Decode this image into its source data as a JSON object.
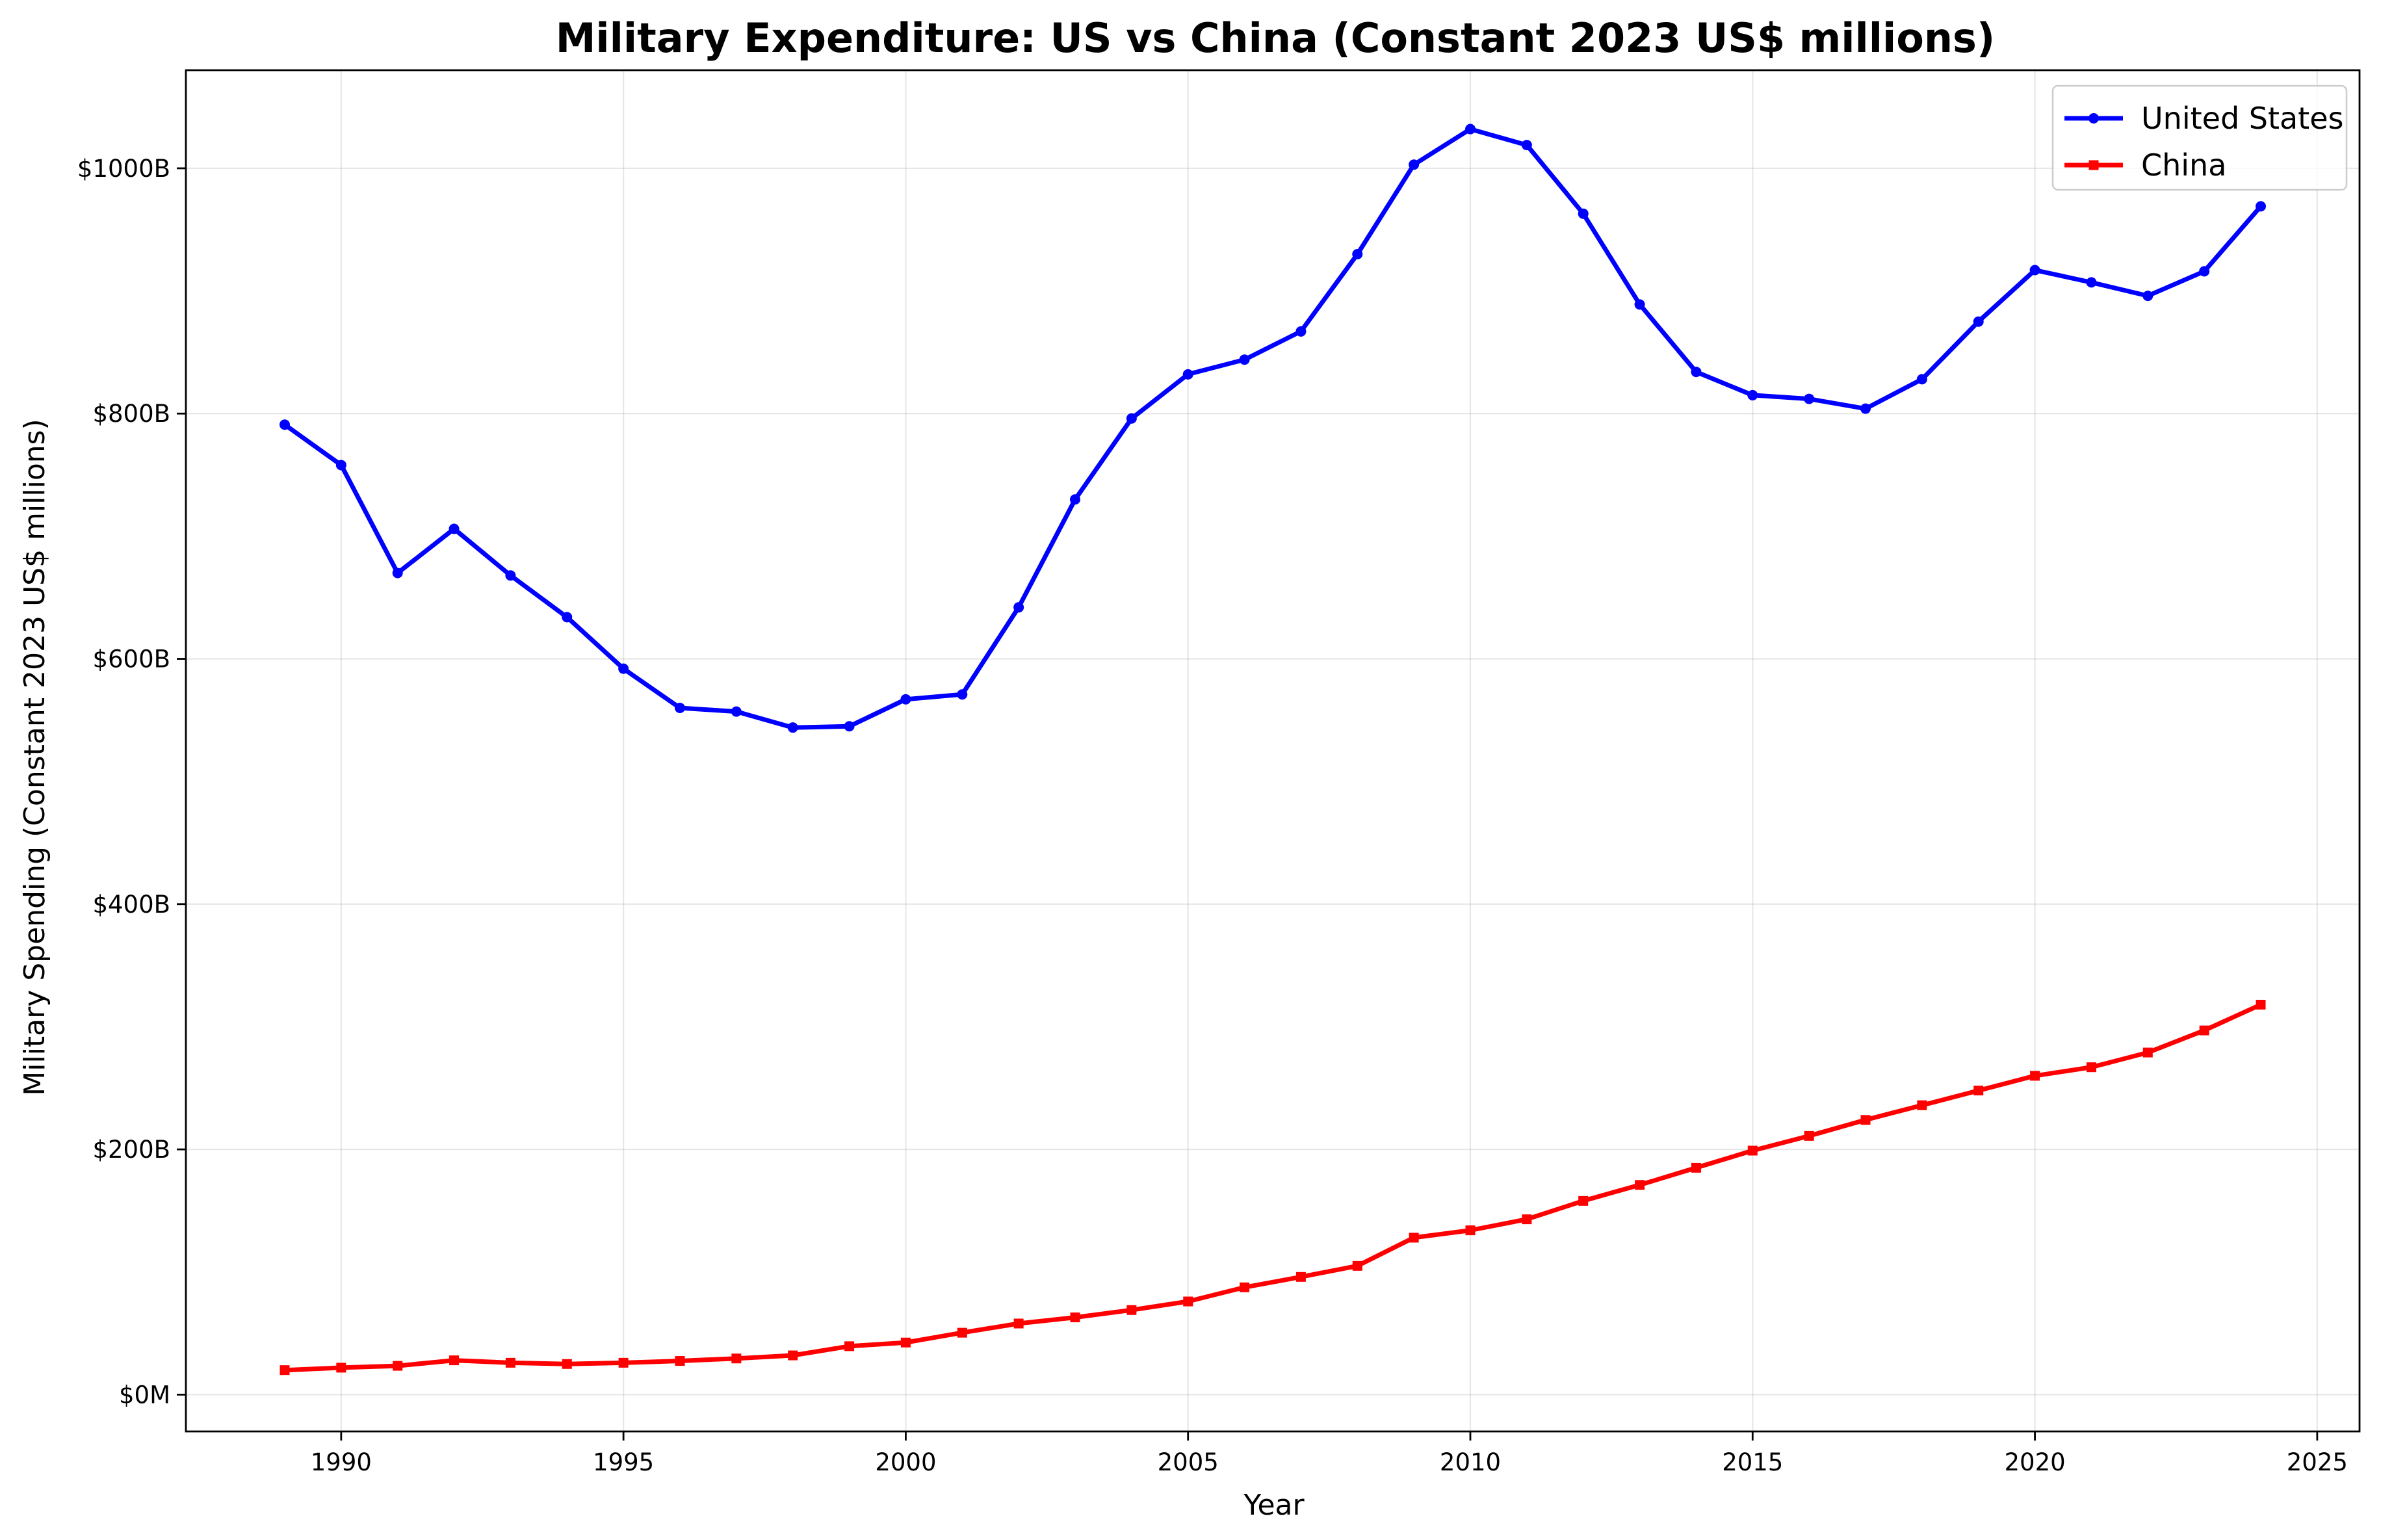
{
  "chart_data": {
    "type": "line",
    "title": "Military Expenditure: US vs China (Constant 2023 US$ millions)",
    "xlabel": "Year",
    "ylabel": "Military Spending (Constant 2023 US$ millions)",
    "xlim": [
      1987.25,
      2025.75
    ],
    "ylim": [
      -30000,
      1080000
    ],
    "x_ticks": [
      1990,
      1995,
      2000,
      2005,
      2010,
      2015,
      2020,
      2025
    ],
    "y_ticks": [
      0,
      200000,
      400000,
      600000,
      800000,
      1000000
    ],
    "y_tick_labels": [
      "$0M",
      "$200B",
      "$400B",
      "$600B",
      "$800B",
      "$1000B"
    ],
    "grid": true,
    "legend_position": "top-right",
    "x": [
      1989,
      1990,
      1991,
      1992,
      1993,
      1994,
      1995,
      1996,
      1997,
      1998,
      1999,
      2000,
      2001,
      2002,
      2003,
      2004,
      2005,
      2006,
      2007,
      2008,
      2009,
      2010,
      2011,
      2012,
      2013,
      2014,
      2015,
      2016,
      2017,
      2018,
      2019,
      2020,
      2021,
      2022,
      2023,
      2024
    ],
    "series": [
      {
        "name": "United States",
        "color": "#0000ff",
        "marker": "circle",
        "values": [
          791000,
          758000,
          670000,
          706000,
          668000,
          634000,
          592000,
          560000,
          557000,
          544000,
          545000,
          567000,
          571000,
          642000,
          730000,
          796000,
          832000,
          844000,
          867000,
          930000,
          1003000,
          1032000,
          1019000,
          963000,
          889000,
          834000,
          815000,
          812000,
          804000,
          828000,
          875000,
          917000,
          907000,
          896000,
          916000,
          969000
        ]
      },
      {
        "name": "China",
        "color": "#ff0000",
        "marker": "square",
        "values": [
          20000,
          22000,
          23500,
          28000,
          26000,
          25000,
          26000,
          27500,
          29500,
          32000,
          39500,
          42500,
          50500,
          58000,
          63000,
          69000,
          76000,
          87500,
          96000,
          105000,
          128000,
          134000,
          143000,
          158000,
          171000,
          185000,
          199000,
          211000,
          224000,
          236000,
          248000,
          260000,
          267000,
          279000,
          297000,
          318000
        ]
      }
    ]
  }
}
